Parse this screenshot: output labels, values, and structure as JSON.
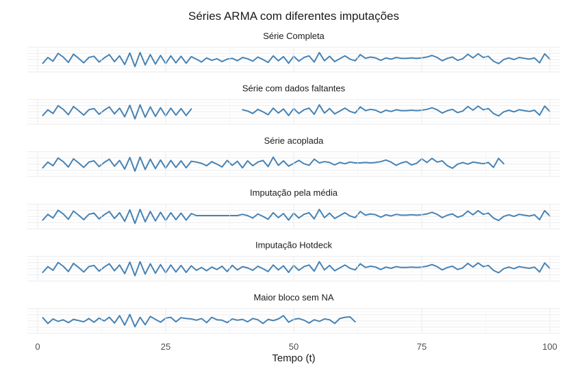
{
  "chart_data": {
    "type": "line",
    "title": "Séries ARMA com diferentes imputações",
    "xlabel": "Tempo (t)",
    "ylabel": "",
    "xlim": [
      -2,
      102
    ],
    "x_ticks": [
      0,
      25,
      50,
      75,
      100
    ],
    "ylim": [
      -3,
      3
    ],
    "y_tick_labels_shown": false,
    "grid": true,
    "line_color": "#4682B4",
    "panels": [
      {
        "name": "Série Completa",
        "x_start": 1,
        "values": [
          -0.9,
          0.5,
          -0.4,
          1.5,
          0.6,
          -0.7,
          1.3,
          0.3,
          -0.8,
          0.5,
          0.8,
          -0.6,
          0.4,
          1.2,
          -0.5,
          0.9,
          -1.2,
          1.6,
          -1.7,
          1.7,
          -1.3,
          1.2,
          -1.1,
          1.0,
          -1.0,
          0.9,
          -0.8,
          0.8,
          -0.9,
          0.7,
          0.1,
          -0.6,
          0.4,
          -0.2,
          0.2,
          -0.5,
          0.1,
          0.3,
          -0.3,
          0.5,
          0.2,
          -0.4,
          0.6,
          0.0,
          -0.7,
          0.9,
          -0.3,
          0.7,
          -0.9,
          0.8,
          -0.4,
          0.5,
          0.9,
          -0.6,
          1.7,
          -0.3,
          0.8,
          -0.5,
          0.2,
          0.9,
          0.1,
          -0.3,
          1.2,
          0.3,
          0.6,
          0.4,
          -0.2,
          0.4,
          0.1,
          0.5,
          0.3,
          0.3,
          0.4,
          0.3,
          0.4,
          0.6,
          1.0,
          0.5,
          -0.3,
          0.3,
          0.6,
          -0.2,
          0.2,
          1.3,
          0.4,
          1.4,
          0.5,
          0.8,
          -0.4,
          -1.0,
          0.0,
          0.4,
          0.0,
          0.5,
          0.3,
          0.1,
          0.4,
          -0.8,
          1.4,
          0.1
        ]
      },
      {
        "name": "Série com dados faltantes",
        "x_start": 1,
        "values": [
          -0.9,
          0.5,
          -0.4,
          1.5,
          0.6,
          -0.7,
          1.3,
          0.3,
          -0.8,
          0.5,
          0.8,
          -0.6,
          0.4,
          1.2,
          -0.5,
          0.9,
          -1.2,
          1.6,
          -1.7,
          1.7,
          -1.3,
          1.2,
          -1.1,
          1.0,
          -1.0,
          0.9,
          -0.8,
          0.8,
          -0.9,
          0.7,
          null,
          null,
          null,
          null,
          null,
          null,
          null,
          null,
          null,
          0.5,
          0.2,
          -0.4,
          0.6,
          0.0,
          -0.7,
          0.9,
          -0.3,
          0.7,
          -0.9,
          0.8,
          -0.4,
          0.5,
          0.9,
          -0.6,
          1.7,
          -0.3,
          0.8,
          -0.5,
          0.2,
          0.9,
          0.1,
          -0.3,
          1.2,
          0.3,
          0.6,
          0.4,
          -0.2,
          0.4,
          0.1,
          0.5,
          0.3,
          0.3,
          0.4,
          0.3,
          0.4,
          0.6,
          1.0,
          0.5,
          -0.3,
          0.3,
          0.6,
          -0.2,
          0.2,
          1.3,
          0.4,
          1.4,
          0.5,
          0.8,
          -0.4,
          -1.0,
          0.0,
          0.4,
          0.0,
          0.5,
          0.3,
          0.1,
          0.4,
          -0.8,
          1.4,
          0.1
        ]
      },
      {
        "name": "Série acoplada",
        "x_start": 1,
        "values": [
          -0.9,
          0.5,
          -0.4,
          1.5,
          0.6,
          -0.7,
          1.3,
          0.3,
          -0.8,
          0.5,
          0.8,
          -0.6,
          0.4,
          1.2,
          -0.5,
          0.9,
          -1.2,
          1.6,
          -1.7,
          1.7,
          -1.3,
          1.2,
          -1.1,
          1.0,
          -1.0,
          0.9,
          -0.8,
          0.8,
          -0.9,
          0.7,
          0.5,
          0.2,
          -0.4,
          0.6,
          0.0,
          -0.7,
          0.9,
          -0.3,
          0.7,
          -0.9,
          0.8,
          -0.4,
          0.5,
          0.9,
          -0.6,
          1.7,
          -0.3,
          0.8,
          -0.5,
          0.2,
          0.9,
          0.1,
          -0.3,
          1.2,
          0.3,
          0.6,
          0.4,
          -0.2,
          0.4,
          0.1,
          0.5,
          0.3,
          0.3,
          0.4,
          0.3,
          0.4,
          0.6,
          1.0,
          0.5,
          -0.3,
          0.3,
          0.6,
          -0.2,
          0.2,
          1.3,
          0.4,
          1.4,
          0.5,
          0.8,
          -0.4,
          -1.0,
          0.0,
          0.4,
          0.0,
          0.5,
          0.3,
          0.1,
          0.4,
          -0.8,
          1.4,
          0.1
        ]
      },
      {
        "name": "Imputação pela média",
        "x_start": 1,
        "values": [
          -0.9,
          0.5,
          -0.4,
          1.5,
          0.6,
          -0.7,
          1.3,
          0.3,
          -0.8,
          0.5,
          0.8,
          -0.6,
          0.4,
          1.2,
          -0.5,
          0.9,
          -1.2,
          1.6,
          -1.7,
          1.7,
          -1.3,
          1.2,
          -1.1,
          1.0,
          -1.0,
          0.9,
          -0.8,
          0.8,
          -0.9,
          0.7,
          0.2,
          0.2,
          0.2,
          0.2,
          0.2,
          0.2,
          0.2,
          0.2,
          0.2,
          0.5,
          0.2,
          -0.4,
          0.6,
          0.0,
          -0.7,
          0.9,
          -0.3,
          0.7,
          -0.9,
          0.8,
          -0.4,
          0.5,
          0.9,
          -0.6,
          1.7,
          -0.3,
          0.8,
          -0.5,
          0.2,
          0.9,
          0.1,
          -0.3,
          1.2,
          0.3,
          0.6,
          0.4,
          -0.2,
          0.4,
          0.1,
          0.5,
          0.3,
          0.3,
          0.4,
          0.3,
          0.4,
          0.6,
          1.0,
          0.5,
          -0.3,
          0.3,
          0.6,
          -0.2,
          0.2,
          1.3,
          0.4,
          1.4,
          0.5,
          0.8,
          -0.4,
          -1.0,
          0.0,
          0.4,
          0.0,
          0.5,
          0.3,
          0.1,
          0.4,
          -0.8,
          1.4,
          0.1
        ]
      },
      {
        "name": "Imputação Hotdeck",
        "x_start": 1,
        "values": [
          -0.9,
          0.5,
          -0.4,
          1.5,
          0.6,
          -0.7,
          1.3,
          0.3,
          -0.8,
          0.5,
          0.8,
          -0.6,
          0.4,
          1.2,
          -0.5,
          0.9,
          -1.2,
          1.6,
          -1.7,
          1.7,
          -1.3,
          1.2,
          -1.1,
          1.0,
          -1.0,
          0.9,
          -0.8,
          0.8,
          -0.9,
          0.7,
          -0.4,
          0.3,
          -0.5,
          0.4,
          -0.2,
          0.6,
          -0.7,
          0.8,
          -0.3,
          0.5,
          0.2,
          -0.4,
          0.6,
          0.0,
          -0.7,
          0.9,
          -0.3,
          0.7,
          -0.9,
          0.8,
          -0.4,
          0.5,
          0.9,
          -0.6,
          1.7,
          -0.3,
          0.8,
          -0.5,
          0.2,
          0.9,
          0.1,
          -0.3,
          1.2,
          0.3,
          0.6,
          0.4,
          -0.2,
          0.4,
          0.1,
          0.5,
          0.3,
          0.3,
          0.4,
          0.3,
          0.4,
          0.6,
          1.0,
          0.5,
          -0.3,
          0.3,
          0.6,
          -0.2,
          0.2,
          1.3,
          0.4,
          1.4,
          0.5,
          0.8,
          -0.4,
          -1.0,
          0.0,
          0.4,
          0.0,
          0.5,
          0.3,
          0.1,
          0.4,
          -0.8,
          1.4,
          0.1
        ]
      },
      {
        "name": "Maior bloco sem NA",
        "x_start": 1,
        "values": [
          0.8,
          -0.6,
          0.5,
          -0.1,
          0.3,
          -0.4,
          0.4,
          0.1,
          -0.2,
          0.6,
          -0.3,
          0.7,
          0.0,
          0.9,
          -0.5,
          1.3,
          -1.0,
          1.6,
          -1.4,
          0.9,
          -0.9,
          1.1,
          0.4,
          -0.3,
          0.7,
          0.9,
          -0.2,
          0.8,
          0.6,
          0.5,
          0.2,
          0.6,
          -0.4,
          0.9,
          0.3,
          0.2,
          -0.4,
          0.5,
          0.2,
          0.4,
          -0.2,
          0.6,
          0.3,
          -0.6,
          0.4,
          0.1,
          0.5,
          1.3,
          -0.3,
          0.4,
          0.6,
          0.2,
          -0.5,
          0.3,
          -0.1,
          0.5,
          0.3,
          -0.6,
          0.6,
          0.9,
          1.0,
          -0.2
        ]
      }
    ]
  }
}
